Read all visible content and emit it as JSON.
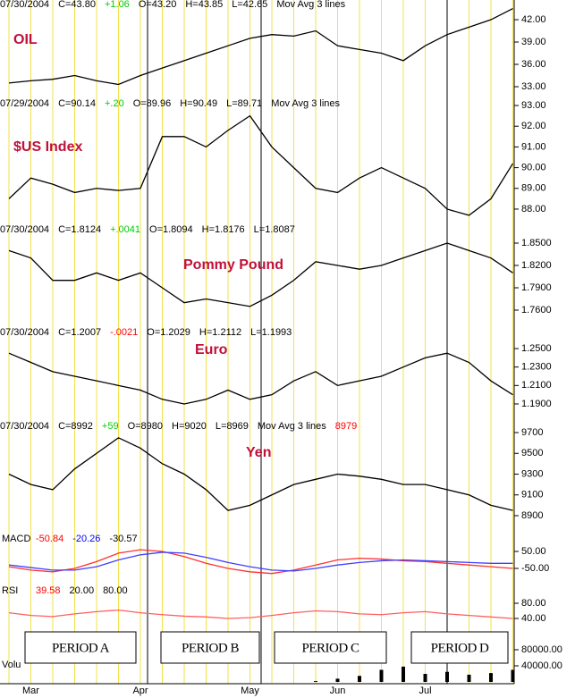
{
  "x_categories": [
    null,
    "Mar",
    null,
    null,
    null,
    null,
    "Apr",
    null,
    null,
    null,
    null,
    "May",
    null,
    null,
    null,
    "Jun",
    null,
    null,
    null,
    "Jul",
    null,
    null,
    null,
    null
  ],
  "periods": [
    "PERIOD A",
    "PERIOD B",
    "PERIOD C",
    "PERIOD D"
  ],
  "chart_data": [
    {
      "type": "line",
      "title": "OIL",
      "header": [
        {
          "text": "07/30/2004",
          "color": "#000"
        },
        {
          "text": "C=43.80",
          "color": "#000"
        },
        {
          "text": "+1.06",
          "color": "#00cc00"
        },
        {
          "text": "O=43.20",
          "color": "#000"
        },
        {
          "text": "H=43.85",
          "color": "#000"
        },
        {
          "text": "L=42.65",
          "color": "#000"
        },
        {
          "text": "Mov Avg 3 lines",
          "color": "#000"
        }
      ],
      "series": [
        {
          "color": "#000",
          "values": [
            33.5,
            33.8,
            34,
            34.5,
            33.8,
            33.3,
            34.5,
            35.5,
            36.5,
            37.5,
            38.5,
            39.5,
            40,
            39.8,
            40.5,
            38.5,
            38,
            37.5,
            36.5,
            38.5,
            40,
            41,
            42,
            43.5
          ]
        }
      ],
      "ylim": [
        31.5,
        44.5
      ],
      "yticks": [
        {
          "value": 33,
          "label": "33.00"
        },
        {
          "value": 36,
          "label": "36.00"
        },
        {
          "value": 39,
          "label": "39.00"
        },
        {
          "value": 42,
          "label": "42.00"
        }
      ]
    },
    {
      "type": "line",
      "title": "$US Index",
      "header": [
        {
          "text": "07/29/2004",
          "color": "#000"
        },
        {
          "text": "C=90.14",
          "color": "#000"
        },
        {
          "text": "+.20",
          "color": "#00cc00"
        },
        {
          "text": "O=89.96",
          "color": "#000"
        },
        {
          "text": "H=90.49",
          "color": "#000"
        },
        {
          "text": "L=89.71",
          "color": "#000"
        },
        {
          "text": "Mov Avg 3 lines",
          "color": "#000"
        }
      ],
      "series": [
        {
          "color": "#000",
          "values": [
            88.5,
            89.5,
            89.2,
            88.8,
            89,
            88.9,
            89,
            91.5,
            91.5,
            91,
            91.8,
            92.5,
            91,
            90,
            89,
            88.8,
            89.5,
            90,
            89.5,
            89,
            88,
            87.7,
            88.5,
            90.2
          ]
        }
      ],
      "ylim": [
        87.3,
        93.2
      ],
      "yticks": [
        {
          "value": 88,
          "label": "88.00"
        },
        {
          "value": 89,
          "label": "89.00"
        },
        {
          "value": 90,
          "label": "90.00"
        },
        {
          "value": 91,
          "label": "91.00"
        },
        {
          "value": 92,
          "label": "92.00"
        },
        {
          "value": 93,
          "label": "93.00"
        }
      ]
    },
    {
      "type": "line",
      "title": "Pommy Pound",
      "header": [
        {
          "text": "07/30/2004",
          "color": "#000"
        },
        {
          "text": "C=1.8124",
          "color": "#000"
        },
        {
          "text": "+.0041",
          "color": "#00cc00"
        },
        {
          "text": "O=1.8094",
          "color": "#000"
        },
        {
          "text": "H=1.8176",
          "color": "#000"
        },
        {
          "text": "L=1.8087",
          "color": "#000"
        }
      ],
      "series": [
        {
          "color": "#000",
          "values": [
            1.84,
            1.83,
            1.8,
            1.8,
            1.81,
            1.8,
            1.81,
            1.79,
            1.77,
            1.775,
            1.77,
            1.765,
            1.78,
            1.8,
            1.825,
            1.82,
            1.815,
            1.82,
            1.83,
            1.84,
            1.85,
            1.84,
            1.83,
            1.81
          ]
        }
      ],
      "ylim": [
        1.745,
        1.865
      ],
      "yticks": [
        {
          "value": 1.76,
          "label": "1.7600"
        },
        {
          "value": 1.79,
          "label": "1.7900"
        },
        {
          "value": 1.82,
          "label": "1.8200"
        },
        {
          "value": 1.85,
          "label": "1.8500"
        }
      ]
    },
    {
      "type": "line",
      "title": "Euro",
      "header": [
        {
          "text": "07/30/2004",
          "color": "#000"
        },
        {
          "text": "C=1.2007",
          "color": "#000"
        },
        {
          "text": "-.0021",
          "color": "#ff0000"
        },
        {
          "text": "O=1.2029",
          "color": "#000"
        },
        {
          "text": "H=1.2112",
          "color": "#000"
        },
        {
          "text": "L=1.1993",
          "color": "#000"
        }
      ],
      "series": [
        {
          "color": "#000",
          "values": [
            1.245,
            1.235,
            1.225,
            1.22,
            1.215,
            1.21,
            1.205,
            1.195,
            1.19,
            1.195,
            1.205,
            1.195,
            1.2,
            1.215,
            1.225,
            1.21,
            1.215,
            1.22,
            1.23,
            1.24,
            1.245,
            1.235,
            1.215,
            1.2
          ]
        }
      ],
      "ylim": [
        1.18,
        1.26
      ],
      "yticks": [
        {
          "value": 1.19,
          "label": "1.1900"
        },
        {
          "value": 1.21,
          "label": "1.2100"
        },
        {
          "value": 1.23,
          "label": "1.2300"
        },
        {
          "value": 1.25,
          "label": "1.2500"
        }
      ]
    },
    {
      "type": "line",
      "title": "Yen",
      "header": [
        {
          "text": "07/30/2004",
          "color": "#000"
        },
        {
          "text": "C=8992",
          "color": "#000"
        },
        {
          "text": "+59",
          "color": "#00cc00"
        },
        {
          "text": "O=8980",
          "color": "#000"
        },
        {
          "text": "H=9020",
          "color": "#000"
        },
        {
          "text": "L=8969",
          "color": "#000"
        },
        {
          "text": "Mov Avg 3 lines",
          "color": "#000"
        },
        {
          "text": "8979",
          "color": "#ff0000"
        }
      ],
      "series": [
        {
          "color": "#000",
          "values": [
            9300,
            9200,
            9150,
            9350,
            9500,
            9650,
            9550,
            9400,
            9300,
            9150,
            8950,
            9000,
            9100,
            9200,
            9250,
            9300,
            9280,
            9250,
            9200,
            9200,
            9150,
            9100,
            9000,
            8950
          ]
        }
      ],
      "ylim": [
        8800,
        9750
      ],
      "yticks": [
        8900,
        9100,
        9300,
        9500,
        9700
      ]
    },
    {
      "type": "line",
      "title": "MACD",
      "header": [
        {
          "text": "-50.84",
          "color": "#ff0000"
        },
        {
          "text": "-20.26",
          "color": "#0000ff"
        },
        {
          "text": "-30.57",
          "color": "#000"
        }
      ],
      "series": [
        {
          "color": "#ff3030",
          "values": [
            -40,
            -60,
            -70,
            -50,
            -10,
            40,
            60,
            50,
            20,
            -20,
            -50,
            -70,
            -80,
            -60,
            -30,
            0,
            10,
            5,
            -5,
            -10,
            -20,
            -30,
            -40,
            -50
          ]
        },
        {
          "color": "#4040ff",
          "values": [
            -30,
            -45,
            -60,
            -60,
            -40,
            0,
            30,
            45,
            40,
            15,
            -15,
            -40,
            -60,
            -65,
            -50,
            -30,
            -15,
            -5,
            0,
            -5,
            -10,
            -15,
            -20,
            -20
          ]
        }
      ],
      "ylim": [
        -100,
        100
      ],
      "yticks": [
        {
          "value": -50,
          "label": "-50.00"
        },
        {
          "value": 50,
          "label": "50.00"
        }
      ]
    },
    {
      "type": "line",
      "title": "RSI",
      "header": [
        {
          "text": "39.58",
          "color": "#ff0000"
        },
        {
          "text": "20.00",
          "color": "#000"
        },
        {
          "text": "80.00",
          "color": "#000"
        }
      ],
      "series": [
        {
          "color": "#ff6060",
          "values": [
            55,
            48,
            45,
            52,
            58,
            62,
            55,
            50,
            46,
            44,
            40,
            42,
            48,
            55,
            60,
            58,
            52,
            50,
            55,
            58,
            52,
            48,
            44,
            40
          ]
        }
      ],
      "ylim": [
        0,
        100
      ],
      "yticks": [
        {
          "value": 40,
          "label": "40.00"
        },
        {
          "value": 80,
          "label": "80.00"
        }
      ]
    },
    {
      "type": "bar",
      "title": "Volu",
      "header": [],
      "series": [
        {
          "color": "#000",
          "values": [
            0,
            0,
            0,
            0,
            0,
            0,
            0,
            0,
            0,
            0,
            0,
            0,
            0,
            0,
            2000,
            8000,
            15000,
            30000,
            38000,
            20000,
            25000,
            18000,
            22000,
            30000
          ]
        }
      ],
      "ylim": [
        0,
        100000
      ],
      "yticks": [
        {
          "value": 40000,
          "label": "40000.00"
        },
        {
          "value": 80000,
          "label": "80000.00"
        }
      ]
    }
  ]
}
